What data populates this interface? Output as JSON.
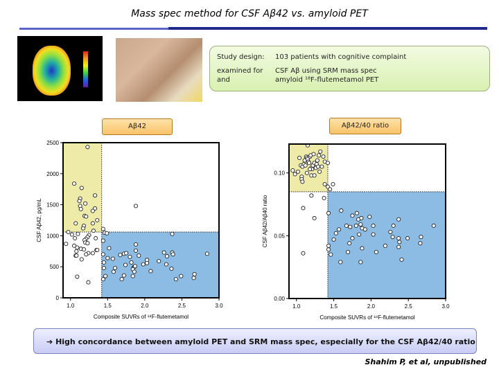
{
  "slide": {
    "title": "Mass spec method for CSF Aβ42 vs. amyloid PET",
    "study_design_label": "Study design:",
    "study_design_value": "103 patients with cognitive complaint",
    "examined_label": "examined for",
    "examined_value": "CSF Aβ using SRM mass spec",
    "and_label": "and",
    "and_value": "amyloid ¹⁸F-flutemetamol PET",
    "tag_left": "Aβ42",
    "tag_right": "Aβ42/40 ratio",
    "conclusion_arrow": "➔",
    "conclusion": "High concordance between amyloid PET and SRM mass spec, especially for the CSF Aβ42/40 ratio",
    "citation": "Shahim P, et al, unpublished",
    "colors": {
      "yellow_region": "#eeeaa8",
      "blue_region": "#8cbce4",
      "title_rule": "#1e2a8c"
    }
  },
  "chart_data": [
    {
      "type": "scatter",
      "xlabel": "Composite SUVRs of ¹⁸F-flutemetamol",
      "ylabel": "CSF Aβ42, pg/mL",
      "xlim": [
        0.9,
        3.0
      ],
      "ylim": [
        0,
        2500
      ],
      "xticks": [
        "1.0",
        "1.5",
        "2.0",
        "2.5",
        "3.0"
      ],
      "yticks": [
        "0",
        "500",
        "1000",
        "1500",
        "2000",
        "2500"
      ],
      "x_cutoff": 1.42,
      "y_cutoff": 1060,
      "points": [
        [
          1.23,
          2430
        ],
        [
          1.05,
          1840
        ],
        [
          1.15,
          1770
        ],
        [
          1.33,
          1650
        ],
        [
          1.13,
          1600
        ],
        [
          1.12,
          1560
        ],
        [
          1.2,
          1520
        ],
        [
          1.13,
          1480
        ],
        [
          1.14,
          1430
        ],
        [
          1.33,
          1440
        ],
        [
          1.3,
          1400
        ],
        [
          1.19,
          1320
        ],
        [
          1.21,
          1310
        ],
        [
          1.36,
          1250
        ],
        [
          1.07,
          1200
        ],
        [
          1.3,
          1200
        ],
        [
          1.18,
          1160
        ],
        [
          1.17,
          1120
        ],
        [
          1.31,
          1080
        ],
        [
          0.97,
          1060
        ],
        [
          1.02,
          1020
        ],
        [
          1.1,
          1030
        ],
        [
          1.25,
          1010
        ],
        [
          1.06,
          960
        ],
        [
          1.23,
          980
        ],
        [
          1.21,
          950
        ],
        [
          1.19,
          930
        ],
        [
          1.34,
          960
        ],
        [
          1.2,
          890
        ],
        [
          1.23,
          880
        ],
        [
          0.94,
          870
        ],
        [
          1.05,
          840
        ],
        [
          1.09,
          810
        ],
        [
          1.14,
          790
        ],
        [
          1.18,
          780
        ],
        [
          1.35,
          770
        ],
        [
          1.36,
          770
        ],
        [
          1.08,
          750
        ],
        [
          1.3,
          720
        ],
        [
          1.24,
          720
        ],
        [
          1.21,
          700
        ],
        [
          1.07,
          680
        ],
        [
          1.08,
          680
        ],
        [
          1.15,
          620
        ],
        [
          1.09,
          340
        ],
        [
          1.24,
          250
        ],
        [
          1.44,
          920
        ],
        [
          1.44,
          1110
        ],
        [
          1.46,
          1050
        ],
        [
          1.49,
          1040
        ],
        [
          1.88,
          1480
        ],
        [
          2.37,
          1030
        ],
        [
          1.44,
          700
        ],
        [
          1.52,
          800
        ],
        [
          1.5,
          640
        ],
        [
          1.57,
          630
        ],
        [
          1.45,
          570
        ],
        [
          1.45,
          480
        ],
        [
          1.6,
          480
        ],
        [
          1.58,
          420
        ],
        [
          1.47,
          350
        ],
        [
          1.44,
          300
        ],
        [
          1.67,
          690
        ],
        [
          1.72,
          710
        ],
        [
          1.75,
          720
        ],
        [
          1.8,
          660
        ],
        [
          1.74,
          530
        ],
        [
          1.82,
          570
        ],
        [
          1.85,
          490
        ],
        [
          1.86,
          500
        ],
        [
          1.87,
          510
        ],
        [
          1.84,
          460
        ],
        [
          1.86,
          420
        ],
        [
          1.84,
          350
        ],
        [
          1.72,
          360
        ],
        [
          1.69,
          300
        ],
        [
          1.88,
          860
        ],
        [
          1.88,
          760
        ],
        [
          1.92,
          680
        ],
        [
          1.98,
          540
        ],
        [
          2.03,
          610
        ],
        [
          2.03,
          560
        ],
        [
          2.08,
          430
        ],
        [
          2.19,
          590
        ],
        [
          2.26,
          730
        ],
        [
          2.3,
          670
        ],
        [
          2.29,
          540
        ],
        [
          2.37,
          730
        ],
        [
          2.38,
          700
        ],
        [
          2.36,
          470
        ],
        [
          2.42,
          300
        ],
        [
          2.49,
          350
        ],
        [
          2.66,
          320
        ],
        [
          2.67,
          380
        ],
        [
          2.84,
          710
        ]
      ]
    },
    {
      "type": "scatter",
      "xlabel": "Composite SUVRs of ¹⁸F-flutemetamol",
      "ylabel": "CSF Aβ42/Aβ40 ratio",
      "xlim": [
        0.9,
        3.0
      ],
      "ylim": [
        0,
        0.123
      ],
      "xticks": [
        "1.0",
        "1.5",
        "2.0",
        "2.5",
        "3.0"
      ],
      "yticks": [
        "0.00",
        "0.05",
        "0.10"
      ],
      "x_cutoff": 1.42,
      "y_cutoff": 0.085,
      "points": [
        [
          1.15,
          0.122
        ],
        [
          0.95,
          0.102
        ],
        [
          0.98,
          0.099
        ],
        [
          1.02,
          0.101
        ],
        [
          1.04,
          0.112
        ],
        [
          1.06,
          0.106
        ],
        [
          1.07,
          0.097
        ],
        [
          1.07,
          0.095
        ],
        [
          1.08,
          0.093
        ],
        [
          1.08,
          0.105
        ],
        [
          1.1,
          0.107
        ],
        [
          1.11,
          0.11
        ],
        [
          1.13,
          0.113
        ],
        [
          1.14,
          0.112
        ],
        [
          1.15,
          0.111
        ],
        [
          1.16,
          0.109
        ],
        [
          1.17,
          0.108
        ],
        [
          1.18,
          0.113
        ],
        [
          1.19,
          0.114
        ],
        [
          1.2,
          0.104
        ],
        [
          1.21,
          0.103
        ],
        [
          1.22,
          0.106
        ],
        [
          1.23,
          0.115
        ],
        [
          1.24,
          0.108
        ],
        [
          1.26,
          0.104
        ],
        [
          1.27,
          0.107
        ],
        [
          1.28,
          0.11
        ],
        [
          1.3,
          0.114
        ],
        [
          1.31,
          0.101
        ],
        [
          1.32,
          0.117
        ],
        [
          1.34,
          0.105
        ],
        [
          1.36,
          0.113
        ],
        [
          1.38,
          0.109
        ],
        [
          1.14,
          0.1
        ],
        [
          1.2,
          0.098
        ],
        [
          1.24,
          0.098
        ],
        [
          1.18,
          0.103
        ],
        [
          1.12,
          0.106
        ],
        [
          1.29,
          0.105
        ],
        [
          1.42,
          0.108
        ],
        [
          1.38,
          0.091
        ],
        [
          1.42,
          0.089
        ],
        [
          1.45,
          0.087
        ],
        [
          1.49,
          0.091
        ],
        [
          1.2,
          0.082
        ],
        [
          1.37,
          0.08
        ],
        [
          1.09,
          0.072
        ],
        [
          1.24,
          0.064
        ],
        [
          1.09,
          0.036
        ],
        [
          1.43,
          0.068
        ],
        [
          1.43,
          0.042
        ],
        [
          1.43,
          0.039
        ],
        [
          1.46,
          0.035
        ],
        [
          1.5,
          0.047
        ],
        [
          1.53,
          0.052
        ],
        [
          1.57,
          0.055
        ],
        [
          1.6,
          0.07
        ],
        [
          1.59,
          0.029
        ],
        [
          1.67,
          0.058
        ],
        [
          1.69,
          0.037
        ],
        [
          1.71,
          0.044
        ],
        [
          1.72,
          0.057
        ],
        [
          1.75,
          0.048
        ],
        [
          1.75,
          0.066
        ],
        [
          1.8,
          0.058
        ],
        [
          1.81,
          0.068
        ],
        [
          1.83,
          0.063
        ],
        [
          1.84,
          0.051
        ],
        [
          1.86,
          0.059
        ],
        [
          1.87,
          0.064
        ],
        [
          1.88,
          0.056
        ],
        [
          1.88,
          0.04
        ],
        [
          1.86,
          0.029
        ],
        [
          1.92,
          0.055
        ],
        [
          1.98,
          0.065
        ],
        [
          2.03,
          0.058
        ],
        [
          2.03,
          0.051
        ],
        [
          2.07,
          0.037
        ],
        [
          2.19,
          0.042
        ],
        [
          2.26,
          0.053
        ],
        [
          2.29,
          0.049
        ],
        [
          2.3,
          0.058
        ],
        [
          2.37,
          0.063
        ],
        [
          2.37,
          0.048
        ],
        [
          2.37,
          0.041
        ],
        [
          2.38,
          0.045
        ],
        [
          2.41,
          0.031
        ],
        [
          2.49,
          0.048
        ],
        [
          2.66,
          0.044
        ],
        [
          2.67,
          0.049
        ],
        [
          2.84,
          0.058
        ]
      ]
    }
  ]
}
